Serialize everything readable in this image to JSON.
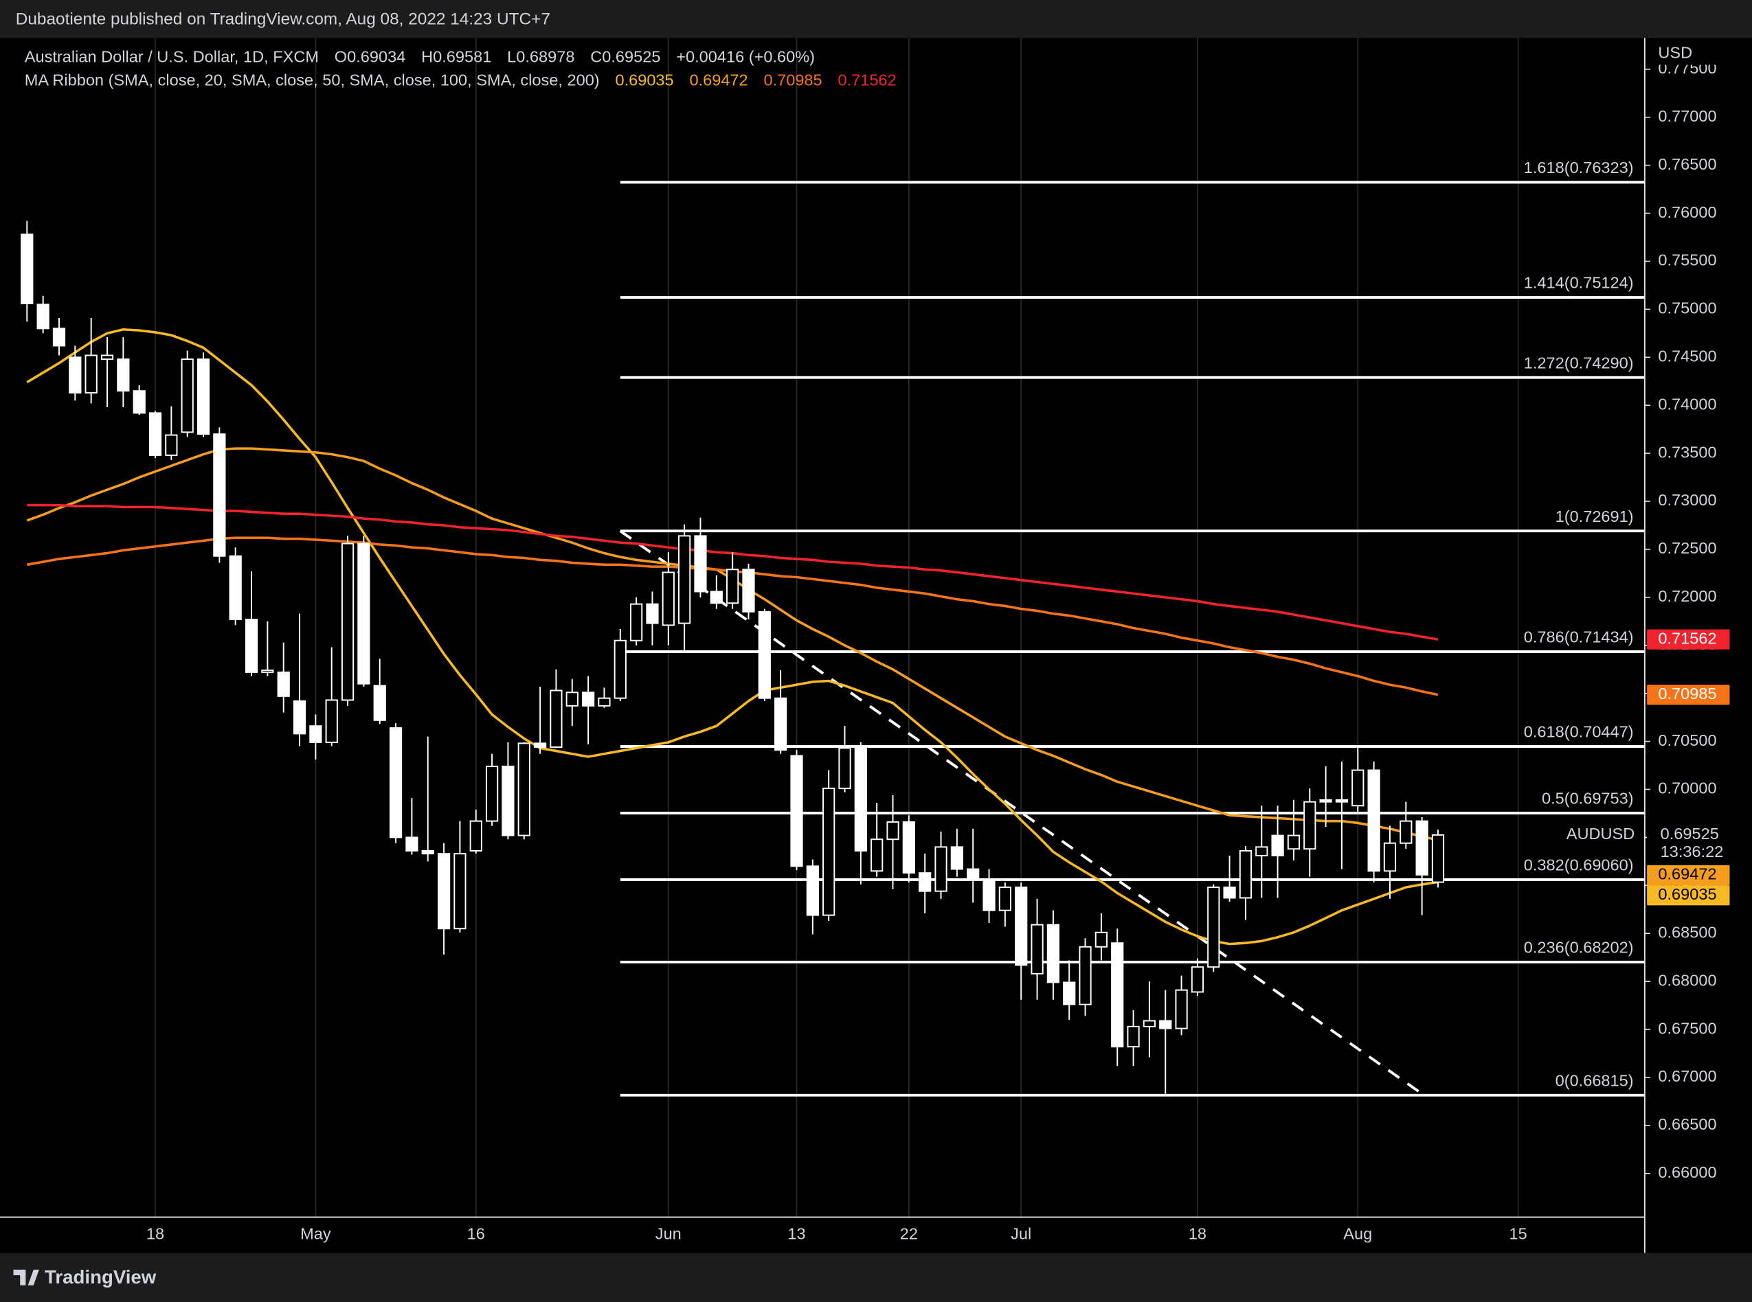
{
  "header": {
    "published": "Dubaotiente published on TradingView.com, Aug 08, 2022 14:23 UTC+7"
  },
  "footer": {
    "brand": "TradingView"
  },
  "chart_data": {
    "type": "candlestick",
    "title": "Australian Dollar / U.S. Dollar, 1D, FXCM",
    "ohlc_text": [
      "O0.69034",
      "H0.69581",
      "L0.68978",
      "C0.69525"
    ],
    "change": "+0.00416 (+0.60%)",
    "indicator": "MA Ribbon (SMA, close, 20, SMA, close, 50, SMA, close, 100, SMA, close, 200)",
    "symbol": "AUDUSD",
    "countdown": "13:36:22",
    "y_axis_unit": "USD",
    "grid": "x",
    "up_fill": "#000000",
    "down_fill": "#ffffff",
    "wick_color": "#ffffff",
    "categories": [
      null,
      null,
      null,
      null,
      null,
      null,
      null,
      null,
      "18",
      null,
      null,
      null,
      null,
      null,
      null,
      null,
      null,
      null,
      "May",
      null,
      null,
      null,
      null,
      null,
      null,
      null,
      null,
      null,
      "16",
      null,
      null,
      null,
      null,
      null,
      null,
      null,
      null,
      null,
      null,
      null,
      "Jun",
      null,
      null,
      null,
      null,
      null,
      null,
      null,
      "13",
      null,
      null,
      null,
      null,
      null,
      null,
      "22",
      null,
      null,
      null,
      null,
      null,
      null,
      "Jul",
      null,
      null,
      null,
      null,
      null,
      null,
      null,
      null,
      null,
      null,
      "18",
      null,
      null,
      null,
      null,
      null,
      null,
      null,
      null,
      null,
      "Aug",
      null,
      null,
      null,
      null,
      null,
      null,
      null,
      null,
      null,
      "15",
      null,
      null,
      null,
      null,
      null,
      null,
      null
    ],
    "open": [
      0.7578,
      0.7505,
      0.748,
      0.745,
      0.7413,
      0.7448,
      0.7448,
      0.7415,
      0.7392,
      0.7348,
      0.7372,
      0.7448,
      0.737,
      0.7243,
      0.7177,
      0.7122,
      0.7122,
      0.7092,
      0.7066,
      0.7049,
      0.7093,
      0.7256,
      0.7108,
      0.7064,
      0.695,
      0.6936,
      0.6933,
      0.6855,
      0.6936,
      0.6967,
      0.7024,
      0.6952,
      0.7048,
      0.7044,
      0.7087,
      0.7101,
      0.7087,
      0.7095,
      0.7155,
      0.7193,
      0.7171,
      0.7173,
      0.7264,
      0.7206,
      0.7194,
      0.7229,
      0.7185,
      0.7095,
      0.7035,
      0.692,
      0.6869,
      0.7001,
      0.7043,
      0.6915,
      0.6948,
      0.6966,
      0.6913,
      0.6894,
      0.694,
      0.6917,
      0.6906,
      0.6874,
      0.6898,
      0.6808,
      0.6859,
      0.6799,
      0.6776,
      0.6836,
      0.684,
      0.6732,
      0.6753,
      0.6759,
      0.6751,
      0.6789,
      0.6815,
      0.6898,
      0.6887,
      0.6931,
      0.6952,
      0.6938,
      0.6938,
      0.6989,
      0.6989,
      0.6983,
      0.702,
      0.6915,
      0.6944,
      0.6967,
      0.69034,
      null,
      null,
      null,
      null,
      null,
      null,
      null,
      null,
      null,
      null,
      null,
      null
    ],
    "high": [
      0.7592,
      0.7514,
      0.7491,
      0.7462,
      0.7491,
      0.7471,
      0.7471,
      0.7421,
      0.7394,
      0.7399,
      0.7457,
      0.7455,
      0.7377,
      0.7252,
      0.7227,
      0.7175,
      0.7153,
      0.7183,
      0.7078,
      0.7148,
      0.7264,
      0.7264,
      0.7136,
      0.7069,
      0.6991,
      0.7055,
      0.6944,
      0.6967,
      0.6979,
      0.7037,
      0.7049,
      0.7049,
      0.7107,
      0.7125,
      0.7115,
      0.7118,
      0.7106,
      0.7167,
      0.72,
      0.7206,
      0.7247,
      0.7276,
      0.7283,
      0.7223,
      0.7247,
      0.7235,
      0.7188,
      0.7124,
      0.7041,
      0.6927,
      0.702,
      0.7066,
      0.7049,
      0.6986,
      0.6994,
      0.6973,
      0.6933,
      0.6956,
      0.6959,
      0.6959,
      0.6917,
      0.6903,
      0.6903,
      0.6886,
      0.6874,
      0.6822,
      0.6845,
      0.6871,
      0.6855,
      0.677,
      0.68,
      0.6791,
      0.6806,
      0.6824,
      0.6901,
      0.6931,
      0.6941,
      0.6983,
      0.6983,
      0.6989,
      0.7001,
      0.7024,
      0.7029,
      0.7045,
      0.7029,
      0.6962,
      0.6987,
      0.6971,
      0.69581,
      null,
      null,
      null,
      null,
      null,
      null,
      null,
      null,
      null,
      null,
      null,
      null
    ],
    "low": [
      0.7487,
      0.7475,
      0.7452,
      0.7405,
      0.7402,
      0.7398,
      0.7398,
      0.739,
      0.7345,
      0.7343,
      0.7367,
      0.7367,
      0.7236,
      0.7171,
      0.7118,
      0.7118,
      0.708,
      0.7045,
      0.7031,
      0.7045,
      0.7087,
      0.7107,
      0.7068,
      0.6944,
      0.6932,
      0.6925,
      0.6828,
      0.6851,
      0.6933,
      0.6962,
      0.6948,
      0.6948,
      0.7037,
      0.7043,
      0.7066,
      0.7047,
      0.7085,
      0.7092,
      0.715,
      0.715,
      0.715,
      0.7144,
      0.72,
      0.7188,
      0.7188,
      0.7177,
      0.7092,
      0.7037,
      0.6916,
      0.6849,
      0.6863,
      0.6997,
      0.6901,
      0.6909,
      0.6896,
      0.6903,
      0.6871,
      0.6886,
      0.6909,
      0.6882,
      0.6861,
      0.6857,
      0.6781,
      0.6781,
      0.6781,
      0.676,
      0.6764,
      0.6822,
      0.6712,
      0.6712,
      0.6721,
      0.6683,
      0.6744,
      0.6785,
      0.681,
      0.6883,
      0.6864,
      0.6887,
      0.6887,
      0.6926,
      0.6909,
      0.6961,
      0.6917,
      0.6976,
      0.6903,
      0.6886,
      0.6938,
      0.6869,
      0.68978,
      null,
      null,
      null,
      null,
      null,
      null,
      null,
      null,
      null,
      null,
      null,
      null
    ],
    "close": [
      0.7506,
      0.748,
      0.7462,
      0.7413,
      0.7452,
      0.7452,
      0.7415,
      0.7392,
      0.7348,
      0.7369,
      0.7448,
      0.737,
      0.7243,
      0.7177,
      0.7122,
      0.7124,
      0.7097,
      0.7058,
      0.7049,
      0.7093,
      0.7256,
      0.711,
      0.7072,
      0.695,
      0.6936,
      0.6933,
      0.6855,
      0.6933,
      0.6967,
      0.7024,
      0.6952,
      0.7048,
      0.7044,
      0.7103,
      0.7101,
      0.7087,
      0.7095,
      0.7155,
      0.7193,
      0.7173,
      0.7226,
      0.7264,
      0.7206,
      0.7194,
      0.7229,
      0.7185,
      0.7095,
      0.7041,
      0.692,
      0.6869,
      0.7001,
      0.7043,
      0.6936,
      0.6948,
      0.6966,
      0.6913,
      0.6894,
      0.694,
      0.6917,
      0.6906,
      0.6874,
      0.6898,
      0.6817,
      0.6859,
      0.6799,
      0.6776,
      0.6836,
      0.6851,
      0.6732,
      0.6753,
      0.6759,
      0.6751,
      0.6791,
      0.6815,
      0.6898,
      0.6887,
      0.6936,
      0.694,
      0.6931,
      0.6952,
      0.6987,
      0.6987,
      0.6987,
      0.702,
      0.6915,
      0.6944,
      0.6967,
      0.6911,
      0.69525,
      null,
      null,
      null,
      null,
      null,
      null,
      null,
      null,
      null,
      null,
      null,
      null
    ],
    "series": [
      {
        "name": "SMA 20",
        "color": "#f7b924",
        "values": [
          0.7424,
          0.7434,
          0.7444,
          0.7455,
          0.7466,
          0.7475,
          0.7479,
          0.7478,
          0.7476,
          0.7473,
          0.7467,
          0.746,
          0.7447,
          0.7434,
          0.7421,
          0.7404,
          0.7385,
          0.7365,
          0.7346,
          0.732,
          0.7293,
          0.7267,
          0.7241,
          0.7216,
          0.7191,
          0.7166,
          0.7141,
          0.7119,
          0.7099,
          0.7078,
          0.7065,
          0.7053,
          0.7043,
          0.704,
          0.7037,
          0.7034,
          0.7037,
          0.704,
          0.7043,
          0.7046,
          0.7049,
          0.7055,
          0.706,
          0.7066,
          0.7079,
          0.7092,
          0.7103,
          0.7106,
          0.7109,
          0.7112,
          0.7113,
          0.7108,
          0.7102,
          0.7096,
          0.709,
          0.7076,
          0.7062,
          0.7049,
          0.7033,
          0.7016,
          0.7,
          0.6985,
          0.6968,
          0.6952,
          0.6935,
          0.6924,
          0.6914,
          0.6904,
          0.6892,
          0.6882,
          0.6872,
          0.6862,
          0.6854,
          0.6847,
          0.6842,
          0.6839,
          0.684,
          0.6842,
          0.6846,
          0.6851,
          0.6858,
          0.6866,
          0.6874,
          0.688,
          0.6886,
          0.6892,
          0.6898,
          0.6901,
          0.69035,
          null,
          null,
          null,
          null,
          null,
          null,
          null,
          null,
          null,
          null,
          null,
          null
        ]
      },
      {
        "name": "SMA 50",
        "color": "#f59d1e",
        "values": [
          0.728,
          0.7286,
          0.7293,
          0.7299,
          0.7306,
          0.7312,
          0.7318,
          0.7325,
          0.7331,
          0.7337,
          0.7343,
          0.7349,
          0.7354,
          0.7355,
          0.7355,
          0.7354,
          0.7353,
          0.7352,
          0.7351,
          0.7349,
          0.7346,
          0.7342,
          0.7334,
          0.7327,
          0.7319,
          0.7312,
          0.7304,
          0.7297,
          0.729,
          0.7282,
          0.7277,
          0.7272,
          0.7267,
          0.7262,
          0.7257,
          0.7251,
          0.7246,
          0.7242,
          0.7239,
          0.7237,
          0.7235,
          0.7233,
          0.7231,
          0.7229,
          0.7219,
          0.7208,
          0.7198,
          0.7187,
          0.7176,
          0.7167,
          0.7159,
          0.715,
          0.7142,
          0.7133,
          0.7125,
          0.7115,
          0.7105,
          0.7095,
          0.7085,
          0.7075,
          0.7065,
          0.7055,
          0.7048,
          0.7041,
          0.7035,
          0.7028,
          0.7021,
          0.7015,
          0.7008,
          0.7003,
          0.6998,
          0.6993,
          0.6988,
          0.6983,
          0.6978,
          0.6973,
          0.6972,
          0.6971,
          0.697,
          0.6969,
          0.6968,
          0.6967,
          0.6967,
          0.6965,
          0.6962,
          0.6959,
          0.6955,
          0.6951,
          0.69472,
          null,
          null,
          null,
          null,
          null,
          null,
          null,
          null,
          null,
          null,
          null,
          null
        ]
      },
      {
        "name": "SMA 100",
        "color": "#f77318",
        "values": [
          0.7234,
          0.7237,
          0.724,
          0.7242,
          0.7244,
          0.7246,
          0.7249,
          0.7251,
          0.7253,
          0.7255,
          0.7257,
          0.7259,
          0.7261,
          0.7262,
          0.7262,
          0.7262,
          0.7261,
          0.7261,
          0.726,
          0.7259,
          0.7258,
          0.7257,
          0.7255,
          0.7254,
          0.7252,
          0.7251,
          0.7249,
          0.7247,
          0.7245,
          0.7244,
          0.7242,
          0.7241,
          0.7239,
          0.7238,
          0.7236,
          0.7235,
          0.7234,
          0.7234,
          0.7233,
          0.7232,
          0.7232,
          0.7231,
          0.723,
          0.7229,
          0.7227,
          0.7226,
          0.7224,
          0.7222,
          0.7221,
          0.7219,
          0.7217,
          0.7215,
          0.7213,
          0.721,
          0.7208,
          0.7206,
          0.7204,
          0.7201,
          0.7198,
          0.7196,
          0.7193,
          0.7191,
          0.7188,
          0.7186,
          0.7183,
          0.7181,
          0.7178,
          0.7175,
          0.7172,
          0.7168,
          0.7165,
          0.7162,
          0.7158,
          0.7155,
          0.7152,
          0.7148,
          0.7145,
          0.7142,
          0.7138,
          0.7135,
          0.7131,
          0.7126,
          0.7122,
          0.7118,
          0.7113,
          0.7109,
          0.7106,
          0.7102,
          0.70985,
          null,
          null,
          null,
          null,
          null,
          null,
          null,
          null,
          null,
          null,
          null,
          null
        ]
      },
      {
        "name": "SMA 200",
        "color": "#f0232f",
        "values": [
          0.7296,
          0.7296,
          0.7296,
          0.7295,
          0.7295,
          0.7295,
          0.7294,
          0.7294,
          0.7294,
          0.7293,
          0.7292,
          0.7291,
          0.729,
          0.729,
          0.7289,
          0.7288,
          0.7287,
          0.7287,
          0.7286,
          0.7285,
          0.7284,
          0.7282,
          0.7281,
          0.7279,
          0.7278,
          0.7276,
          0.7275,
          0.7273,
          0.7272,
          0.7271,
          0.727,
          0.7268,
          0.7266,
          0.7264,
          0.7263,
          0.7261,
          0.7259,
          0.7257,
          0.7256,
          0.7254,
          0.7252,
          0.725,
          0.7249,
          0.7247,
          0.7246,
          0.7244,
          0.7243,
          0.7241,
          0.724,
          0.7239,
          0.7237,
          0.7236,
          0.7235,
          0.7233,
          0.7232,
          0.7231,
          0.7229,
          0.7228,
          0.7226,
          0.7224,
          0.7222,
          0.722,
          0.7218,
          0.7216,
          0.7214,
          0.7212,
          0.721,
          0.7208,
          0.7206,
          0.7204,
          0.7202,
          0.72,
          0.7198,
          0.7196,
          0.7193,
          0.7191,
          0.7189,
          0.7187,
          0.7185,
          0.7182,
          0.7179,
          0.7176,
          0.7173,
          0.717,
          0.7167,
          0.7164,
          0.7162,
          0.7159,
          0.71562,
          null,
          null,
          null,
          null,
          null,
          null,
          null,
          null,
          null,
          null,
          null,
          null
        ]
      }
    ],
    "fib_levels": [
      {
        "label": "1.618(0.76323)",
        "value": 0.76323
      },
      {
        "label": "1.414(0.75124)",
        "value": 0.75124
      },
      {
        "label": "1.272(0.74290)",
        "value": 0.7429
      },
      {
        "label": "1(0.72691)",
        "value": 0.72691
      },
      {
        "label": "0.786(0.71434)",
        "value": 0.71434
      },
      {
        "label": "0.618(0.70447)",
        "value": 0.70447
      },
      {
        "label": "0.5(0.69753)",
        "value": 0.69753
      },
      {
        "label": "0.382(0.69060)",
        "value": 0.6906
      },
      {
        "label": "0.236(0.68202)",
        "value": 0.68202
      },
      {
        "label": "0(0.66815)",
        "value": 0.66815
      }
    ],
    "trendline": {
      "x": [
        37,
        87
      ],
      "y": [
        0.72691,
        0.6683
      ]
    },
    "ylim": [
      0.65545,
      0.77814
    ],
    "yticks": [
      {
        "value": 0.66,
        "label": "0.66000"
      },
      {
        "value": 0.665,
        "label": "0.66500"
      },
      {
        "value": 0.67,
        "label": "0.67000"
      },
      {
        "value": 0.675,
        "label": "0.67500"
      },
      {
        "value": 0.68,
        "label": "0.68000"
      },
      {
        "value": 0.685,
        "label": "0.68500"
      },
      {
        "value": 0.69,
        "label": "0.69000"
      },
      {
        "value": 0.695,
        "label": "0.69500"
      },
      {
        "value": 0.7,
        "label": "0.70000"
      },
      {
        "value": 0.705,
        "label": "0.70500"
      },
      {
        "value": 0.71,
        "label": "0.71000"
      },
      {
        "value": 0.715,
        "label": "0.71500"
      },
      {
        "value": 0.72,
        "label": "0.72000"
      },
      {
        "value": 0.725,
        "label": "0.72500"
      },
      {
        "value": 0.73,
        "label": "0.73000"
      },
      {
        "value": 0.735,
        "label": "0.73500"
      },
      {
        "value": 0.74,
        "label": "0.74000"
      },
      {
        "value": 0.745,
        "label": "0.74500"
      },
      {
        "value": 0.75,
        "label": "0.75000"
      },
      {
        "value": 0.755,
        "label": "0.75500"
      },
      {
        "value": 0.76,
        "label": "0.76000"
      },
      {
        "value": 0.765,
        "label": "0.76500"
      },
      {
        "value": 0.77,
        "label": "0.77000"
      },
      {
        "value": 0.775,
        "label": "0.77500"
      }
    ]
  }
}
